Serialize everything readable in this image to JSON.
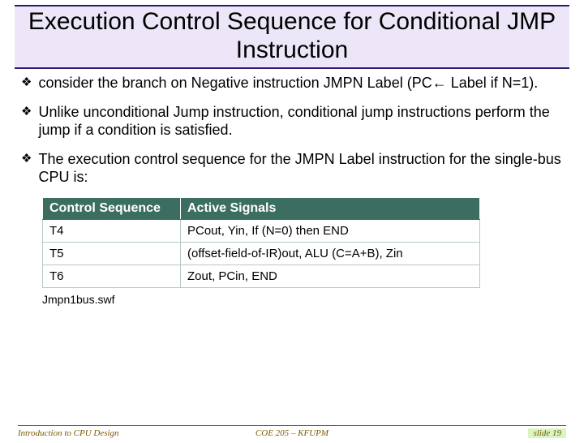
{
  "title": "Execution Control Sequence for Conditional JMP Instruction",
  "bullets": [
    "consider the branch on Negative instruction JMPN Label (PC← Label if N=1).",
    "Unlike unconditional Jump instruction, conditional jump instructions perform the jump if a condition is satisfied.",
    "The execution control sequence for the JMPN Label instruction for the single-bus CPU is:"
  ],
  "table": {
    "headers": [
      "Control Sequence",
      "Active Signals"
    ],
    "rows": [
      [
        "T4",
        "PCout, Yin, If (N=0) then END"
      ],
      [
        "T5",
        "(offset-field-of-IR)out, ALU (C=A+B), Zin"
      ],
      [
        "T6",
        "Zout, PCin, END"
      ]
    ]
  },
  "swf_caption": "Jmpn1bus.swf",
  "footer": {
    "left": "Introduction to CPU Design",
    "center": "COE 205 – KFUPM",
    "right": "slide 19"
  },
  "colors": {
    "title_bg": "#ece6f8",
    "title_border": "#2a1a6e",
    "table_header_bg": "#3b6e60",
    "table_header_fg": "#ffffff",
    "table_border": "#b8c9c3",
    "footer_color": "#7a5a00",
    "slide_badge_bg": "#d9f5c4"
  }
}
